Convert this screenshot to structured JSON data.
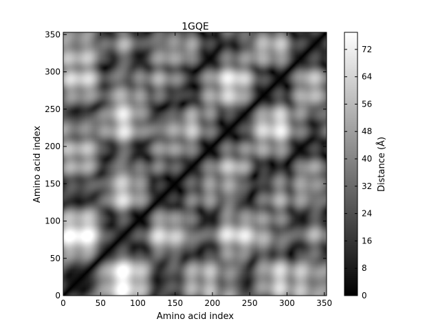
{
  "chart_data": {
    "type": "heatmap",
    "title": "1GQE",
    "xlabel": "Amino acid index",
    "ylabel": "Amino acid index",
    "xlim": [
      0,
      353
    ],
    "ylim": [
      0,
      353
    ],
    "x_ticks": [
      0,
      50,
      100,
      150,
      200,
      250,
      300,
      350
    ],
    "y_ticks": [
      0,
      50,
      100,
      150,
      200,
      250,
      300,
      350
    ],
    "colorbar": {
      "label": "Distance (Å)",
      "range": [
        0,
        77
      ],
      "ticks": [
        0,
        8,
        16,
        24,
        32,
        40,
        48,
        56,
        64,
        72
      ],
      "colormap": "gray"
    },
    "diagonal_value": 0,
    "symmetric": true,
    "colors": {
      "low": "#000000",
      "high": "#ffffff",
      "frame": "#000000"
    }
  }
}
